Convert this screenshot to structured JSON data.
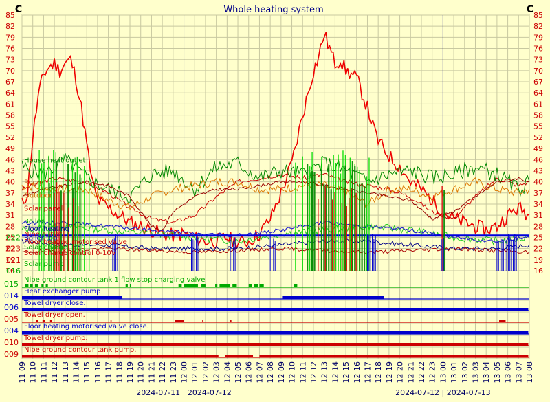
{
  "chart_data": {
    "type": "line",
    "title": "Whole heating system",
    "y_unit_left": "C",
    "y_unit_right": "C",
    "y_ticks": [
      16,
      19,
      22,
      25,
      28,
      31,
      34,
      37,
      40,
      43,
      46,
      49,
      52,
      55,
      58,
      61,
      64,
      67,
      70,
      73,
      76,
      79,
      82,
      85
    ],
    "ylim": [
      16,
      85
    ],
    "x_ticks": [
      "11 09",
      "11 10",
      "11 11",
      "11 12",
      "11 13",
      "11 14",
      "11 15",
      "11 16",
      "11 17",
      "11 18",
      "11 19",
      "11 20",
      "11 21",
      "11 22",
      "11 23",
      "12 00",
      "12 01",
      "12 02",
      "12 03",
      "12 04",
      "12 05",
      "12 06",
      "12 07",
      "12 08",
      "12 09",
      "12 10",
      "12 11",
      "12 12",
      "12 13",
      "12 14",
      "12 15",
      "12 16",
      "12 17",
      "12 18",
      "12 19",
      "12 20",
      "12 21",
      "12 22",
      "12 23",
      "13 00",
      "13 01",
      "13 02",
      "13 03",
      "13 04",
      "13 05",
      "13 06",
      "13 07",
      "13 08"
    ],
    "date_labels": [
      "2024-07-11 | 2024-07-12",
      "2024-07-12 | 2024-07-13"
    ],
    "day_boundaries": [
      "12 00",
      "13 00"
    ],
    "grid": true,
    "background": "#ffffcc",
    "grid_color": "#c8c8a0",
    "analog_labels": [
      {
        "text": "House heat outlet",
        "color": "#008800",
        "at": 46
      },
      {
        "text": "Room",
        "color": "#cc4400",
        "at": 40
      },
      {
        "text": "Outdoor",
        "color": "#cc6600",
        "at": 36.5
      },
      {
        "text": "Solar panel",
        "color": "#cc0000",
        "at": 33
      },
      {
        "text": "Boiler",
        "color": "#00aa00",
        "at": 29.5
      },
      {
        "text": "Floor heating",
        "color": "#000099",
        "at": 27.5
      },
      {
        "text": "Nibe outlet",
        "color": "#cc0000",
        "at": 26
      },
      {
        "text": "Boiler top",
        "color": "#0000cc",
        "at": 25
      },
      {
        "text": "Floor heating motorised valve",
        "color": "#cc0000",
        "at": 24
      },
      {
        "text": "Solar charge",
        "color": "#00aa00",
        "at": 22.5
      },
      {
        "text": "Solar charge control 0-10V",
        "color": "#cc0000",
        "at": 21
      },
      {
        "text": "Solar pump",
        "color": "#00aa00",
        "at": 18
      }
    ],
    "left_overlay_numbers": [
      {
        "text": "022",
        "color": "#00aa00",
        "at": 25
      },
      {
        "text": "023",
        "color": "#cc0000",
        "at": 22
      },
      {
        "text": "021",
        "color": "#cc0000",
        "at": 19
      },
      {
        "text": "016",
        "color": "#00aa00",
        "at": 16
      }
    ],
    "digital_tracks": [
      {
        "id": "015",
        "label": "Nibe ground contour tank 1 flow stop charging valve",
        "color": "#00aa00",
        "on": [
          [
            0.3,
            0.6
          ],
          [
            0.7,
            1.0
          ],
          [
            1.2,
            1.5
          ],
          [
            1.8,
            2.0
          ],
          [
            2.2,
            2.4
          ],
          [
            9.6,
            9.8
          ],
          [
            10.0,
            10.1
          ],
          [
            14.5,
            14.8
          ],
          [
            15.0,
            16.3
          ],
          [
            16.6,
            17.0
          ],
          [
            17.9,
            18.1
          ],
          [
            18.3,
            19.3
          ],
          [
            19.5,
            19.9
          ],
          [
            21.0,
            21.3
          ],
          [
            21.5,
            21.9
          ],
          [
            22.0,
            22.4
          ],
          [
            25.2,
            25.5
          ]
        ]
      },
      {
        "id": "014",
        "label": "Heat exchanger pump",
        "color": "#0000cc",
        "on": [
          [
            0.0,
            9.3
          ],
          [
            24.1,
            33.5
          ]
        ]
      },
      {
        "id": "006",
        "label": "Towel dryer close.",
        "color": "#0000cc",
        "on": [
          [
            0.0,
            46.9
          ]
        ]
      },
      {
        "id": "005",
        "label": "Towel dryer open.",
        "color": "#cc0000",
        "on": [
          [
            1.3,
            1.5
          ],
          [
            1.9,
            2.1
          ],
          [
            2.6,
            2.8
          ],
          [
            8.2,
            8.3
          ],
          [
            14.2,
            15.0
          ],
          [
            16.7,
            16.8
          ],
          [
            19.3,
            19.4
          ],
          [
            44.2,
            44.8
          ]
        ]
      },
      {
        "id": "004",
        "label": "Floor heating motorised valve close.",
        "color": "#0000cc",
        "on": [
          [
            0.0,
            46.9
          ]
        ]
      },
      {
        "id": "010",
        "label": "Towel dryer pump.",
        "color": "#cc0000",
        "on": [
          [
            0.0,
            46.9
          ]
        ]
      },
      {
        "id": "009",
        "label": "Nibe ground contour tank pump.",
        "color": "#cc0000",
        "on": [
          [
            0.0,
            18.2
          ],
          [
            18.8,
            21.4
          ],
          [
            22.0,
            46.9
          ]
        ]
      }
    ],
    "series": [
      {
        "color": "#ee0000",
        "width": 1.6,
        "values": [
          [
            0,
            34
          ],
          [
            0.5,
            37
          ],
          [
            1.0,
            52
          ],
          [
            1.5,
            63
          ],
          [
            2.0,
            69
          ],
          [
            2.5,
            71
          ],
          [
            3.0,
            72
          ],
          [
            3.5,
            70
          ],
          [
            4.0,
            72
          ],
          [
            4.5,
            73
          ],
          [
            5.0,
            68
          ],
          [
            5.5,
            60
          ],
          [
            6.0,
            50
          ],
          [
            6.5,
            40
          ],
          [
            7.0,
            35
          ],
          [
            8.0,
            33
          ],
          [
            9.0,
            31
          ],
          [
            10.0,
            29
          ],
          [
            11.0,
            28
          ],
          [
            12.0,
            27
          ],
          [
            13.0,
            26
          ],
          [
            14.0,
            25.5
          ],
          [
            15.0,
            26
          ],
          [
            16.0,
            25
          ],
          [
            17.0,
            24
          ],
          [
            18.0,
            24
          ],
          [
            19.0,
            25
          ],
          [
            20.0,
            23.5
          ],
          [
            21.0,
            24
          ],
          [
            22.0,
            26
          ],
          [
            23.0,
            30
          ],
          [
            24.0,
            37
          ],
          [
            25.0,
            45
          ],
          [
            26.0,
            58
          ],
          [
            27.0,
            70
          ],
          [
            27.5,
            74
          ],
          [
            28.0,
            80
          ],
          [
            28.5,
            76
          ],
          [
            29.0,
            72
          ],
          [
            29.5,
            73
          ],
          [
            30.0,
            70
          ],
          [
            31.0,
            68
          ],
          [
            32.0,
            60
          ],
          [
            32.5,
            55
          ],
          [
            33.0,
            51
          ],
          [
            34.0,
            47
          ],
          [
            35.0,
            44
          ],
          [
            36.0,
            40
          ],
          [
            37.0,
            38
          ],
          [
            38.0,
            35
          ],
          [
            39.0,
            32
          ],
          [
            40.0,
            30
          ],
          [
            41.0,
            29
          ],
          [
            42.0,
            28
          ],
          [
            43.0,
            27
          ],
          [
            44.0,
            28
          ],
          [
            45.0,
            31
          ],
          [
            46.0,
            33
          ],
          [
            47.0,
            31
          ]
        ],
        "noise": 2.0,
        "seed": 11
      },
      {
        "color": "#cc0000",
        "width": 1.0,
        "values": [
          [
            0,
            38
          ],
          [
            3,
            41
          ],
          [
            6,
            40
          ],
          [
            8,
            37
          ],
          [
            10,
            33
          ],
          [
            12,
            30
          ],
          [
            14,
            29
          ],
          [
            16,
            31
          ],
          [
            18,
            36
          ],
          [
            20,
            40
          ],
          [
            22,
            41
          ],
          [
            24,
            42
          ],
          [
            26,
            41
          ],
          [
            28,
            42
          ],
          [
            30,
            40
          ],
          [
            32,
            39
          ],
          [
            34,
            38
          ],
          [
            36,
            36
          ],
          [
            38,
            32
          ],
          [
            40,
            30
          ],
          [
            42,
            36
          ],
          [
            44,
            41
          ],
          [
            46,
            39
          ],
          [
            47,
            40
          ]
        ],
        "noise": 0.6,
        "seed": 3
      },
      {
        "color": "#008800",
        "width": 1.0,
        "values": [
          [
            0,
            44
          ],
          [
            2,
            42
          ],
          [
            4,
            46
          ],
          [
            6,
            41
          ],
          [
            8,
            38
          ],
          [
            10,
            36
          ],
          [
            12,
            42
          ],
          [
            14,
            43
          ],
          [
            16,
            38
          ],
          [
            18,
            44
          ],
          [
            20,
            45
          ],
          [
            22,
            41
          ],
          [
            24,
            43
          ],
          [
            26,
            42
          ],
          [
            28,
            45
          ],
          [
            30,
            43
          ],
          [
            32,
            40
          ],
          [
            34,
            42
          ],
          [
            36,
            43
          ],
          [
            38,
            41
          ],
          [
            40,
            42
          ],
          [
            42,
            44
          ],
          [
            44,
            42
          ],
          [
            46,
            38
          ],
          [
            47,
            40
          ]
        ],
        "noise": 2.2,
        "seed": 5
      },
      {
        "color": "#dd7700",
        "width": 1.0,
        "values": [
          [
            0,
            39
          ],
          [
            3,
            38
          ],
          [
            6,
            38
          ],
          [
            8,
            35
          ],
          [
            10,
            33
          ],
          [
            12,
            36
          ],
          [
            14,
            38
          ],
          [
            16,
            39
          ],
          [
            18,
            40
          ],
          [
            20,
            40
          ],
          [
            22,
            38
          ],
          [
            24,
            38
          ],
          [
            26,
            39
          ],
          [
            28,
            39
          ],
          [
            30,
            37
          ],
          [
            32,
            34
          ],
          [
            34,
            38
          ],
          [
            36,
            38
          ],
          [
            38,
            36
          ],
          [
            40,
            38
          ],
          [
            42,
            40
          ],
          [
            44,
            38
          ],
          [
            46,
            37
          ],
          [
            47,
            38
          ]
        ],
        "noise": 1.2,
        "seed": 7
      },
      {
        "color": "#990000",
        "width": 1.0,
        "values": [
          [
            0,
            36
          ],
          [
            2,
            38
          ],
          [
            4,
            39
          ],
          [
            6,
            40
          ],
          [
            8,
            39
          ],
          [
            10,
            36
          ],
          [
            12,
            28
          ],
          [
            13,
            27
          ],
          [
            14,
            32
          ],
          [
            16,
            36
          ],
          [
            18,
            38
          ],
          [
            20,
            38
          ],
          [
            22,
            39
          ],
          [
            24,
            40
          ],
          [
            26,
            40
          ],
          [
            28,
            39
          ],
          [
            30,
            38
          ],
          [
            32,
            37
          ],
          [
            34,
            36
          ],
          [
            36,
            35
          ],
          [
            38,
            30
          ],
          [
            40,
            32
          ],
          [
            42,
            36
          ],
          [
            44,
            40
          ],
          [
            46,
            41
          ],
          [
            47,
            40
          ]
        ],
        "noise": 0.4,
        "seed": 9
      },
      {
        "color": "#22cc22",
        "width": 1.0,
        "values": [
          [
            0,
            27
          ],
          [
            4,
            28
          ],
          [
            8,
            27
          ],
          [
            12,
            26
          ],
          [
            16,
            25
          ],
          [
            20,
            24
          ],
          [
            24,
            26
          ],
          [
            28,
            27
          ],
          [
            32,
            28
          ],
          [
            36,
            27
          ],
          [
            40,
            25
          ],
          [
            44,
            24
          ],
          [
            47,
            25
          ]
        ],
        "noise": 1.0,
        "seed": 13
      },
      {
        "color": "#2222cc",
        "width": 1.2,
        "values": [
          [
            0,
            29
          ],
          [
            4,
            29
          ],
          [
            8,
            28
          ],
          [
            12,
            27
          ],
          [
            16,
            26
          ],
          [
            20,
            25.5
          ],
          [
            24,
            27
          ],
          [
            28,
            29
          ],
          [
            32,
            28
          ],
          [
            36,
            27
          ],
          [
            40,
            25
          ],
          [
            44,
            24
          ],
          [
            47,
            25
          ]
        ],
        "noise": 0.5,
        "seed": 15
      },
      {
        "color": "#000088",
        "width": 1.0,
        "values": [
          [
            0,
            24
          ],
          [
            4,
            23
          ],
          [
            8,
            23
          ],
          [
            12,
            22
          ],
          [
            16,
            22
          ],
          [
            20,
            22
          ],
          [
            24,
            23
          ],
          [
            28,
            24
          ],
          [
            32,
            24
          ],
          [
            36,
            23
          ],
          [
            40,
            22
          ],
          [
            44,
            22
          ],
          [
            47,
            23
          ]
        ],
        "noise": 0.6,
        "seed": 17
      },
      {
        "color": "#0000dd",
        "width": 3.0,
        "values": [
          [
            0,
            25.5
          ],
          [
            10,
            25.5
          ],
          [
            20,
            25.5
          ],
          [
            30,
            25.5
          ],
          [
            40,
            25.5
          ],
          [
            47,
            25.5
          ]
        ],
        "noise": 0.0,
        "seed": 1
      },
      {
        "color": "#aa0000",
        "width": 1.0,
        "values": [
          [
            0,
            21
          ],
          [
            8,
            22
          ],
          [
            16,
            21
          ],
          [
            24,
            22
          ],
          [
            32,
            21
          ],
          [
            40,
            22
          ],
          [
            47,
            21
          ]
        ],
        "noise": 0.5,
        "seed": 19
      }
    ]
  }
}
